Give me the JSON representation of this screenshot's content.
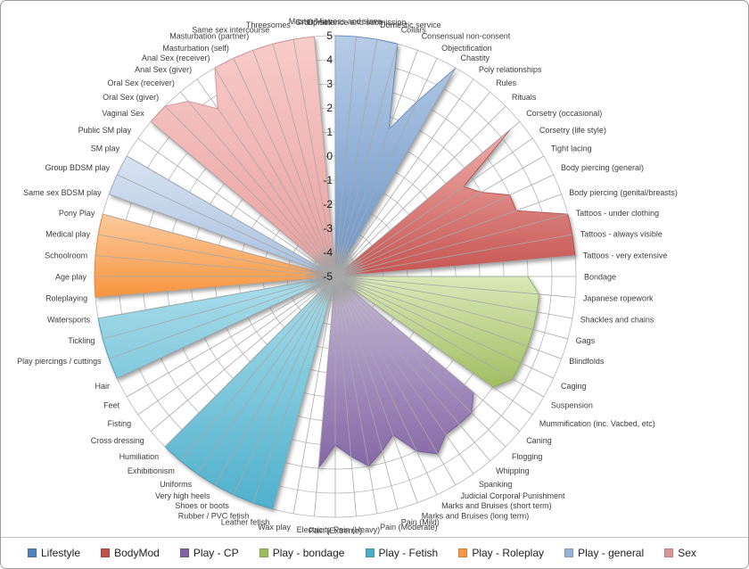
{
  "window": {
    "background": "#ffffff",
    "border_color": "#9c9c9c",
    "grid_color": "#b5b5b5",
    "spoke_color": "#a8a8a8"
  },
  "chart_data": {
    "type": "radar",
    "title": "",
    "axis": {
      "min": -5,
      "max": 5,
      "step": 1,
      "tick_labels": [
        "5",
        "4",
        "3",
        "2",
        "1",
        "0",
        "-1",
        "-2",
        "-3",
        "-4",
        "-5"
      ]
    },
    "grid": "on",
    "legend_position": "bottom",
    "default_value": -5,
    "categories": [
      "Master/Mistress and slave",
      "Dominance and submission",
      "Domestic service",
      "Collars",
      "Consensual non-consent",
      "Objectification",
      "Chastity",
      "Poly relationships",
      "Rules",
      "Rituals",
      "Corsetry (occasional)",
      "Corsetry (life style)",
      "Tight lacing",
      "Body piercing (general)",
      "Body piercing (genital/breasts)",
      "Tattoos - under clothing",
      "Tattoos - always visible",
      "Tattoos - very extensive",
      "Bondage",
      "Japanese ropework",
      "Shackles and chains",
      "Gags",
      "Blindfolds",
      "Caging",
      "Suspension",
      "Mummification (inc. Vacbed, etc)",
      "Caning",
      "Flogging",
      "Whipping",
      "Spanking",
      "Judicial Corporal Punishment",
      "Marks and Bruises (short term)",
      "Marks and Bruises (long term)",
      "Pain (Mild)",
      "Pain (Moderate)",
      "Pain (Heavy)",
      "Pain (Extreme)",
      "Electricity",
      "Wax play",
      "Leather fetish",
      "Rubber / PVC fetish",
      "Shoes or boots",
      "Very high heels",
      "Uniforms",
      "Exhibitionism",
      "Humiliation",
      "Cross dressing",
      "Fisting",
      "Feet",
      "Hair",
      "Play piercings / cuttings",
      "Tickling",
      "Watersports",
      "Roleplaying",
      "Age play",
      "Schoolroom",
      "Medical play",
      "Pony Play",
      "Same sex BDSM play",
      "Group BDSM play",
      "SM play",
      "Public SM play",
      "Vaginal Sex",
      "Oral Sex (giver)",
      "Oral Sex (receiver)",
      "Anal Sex (giver)",
      "Anal Sex (receiver)",
      "Masturbation (self)",
      "Masturbation (partner)",
      "Same sex intercourse",
      "Threesomes",
      "Group sex"
    ],
    "series": [
      {
        "name": "Lifestyle",
        "start": 0,
        "values": [
          5,
          5,
          5,
          5,
          1.5,
          3,
          5,
          -5,
          -5,
          -5
        ],
        "fill_light": "#B7CCE7",
        "fill_dark": "#6A94C6",
        "stroke": "#5B86BC",
        "color": "#4F81BD"
      },
      {
        "name": "BodyMod",
        "start": 10,
        "values": [
          4.5,
          1.5,
          2,
          3,
          3,
          5,
          5,
          5
        ],
        "fill_light": "#EFADAB",
        "fill_dark": "#C65551",
        "stroke": "#AF4A47",
        "color": "#C0504D"
      },
      {
        "name": "Play - CP",
        "start": 26,
        "values": [
          2.5,
          3,
          3,
          3,
          3.5,
          3,
          2,
          2.5,
          3,
          2.5,
          2,
          3,
          -5
        ],
        "fill_light": "#C6B8D7",
        "fill_dark": "#8467A5",
        "stroke": "#74599A",
        "color": "#8064A2"
      },
      {
        "name": "Play - bondage",
        "start": 18,
        "values": [
          3,
          3.5,
          3.5,
          3.5,
          3.5,
          3.5,
          3.5,
          3
        ],
        "fill_light": "#D9E8B8",
        "fill_dark": "#A0BE61",
        "stroke": "#8CAC50",
        "color": "#9BBB59"
      },
      {
        "name": "Play - Fetish",
        "start": 39,
        "values": [
          5,
          5,
          5,
          5,
          5,
          5,
          5,
          -5,
          -5,
          -5,
          5,
          5,
          5,
          5
        ],
        "fill_light": "#A9DDEA",
        "fill_dark": "#4FB0CC",
        "stroke": "#3F9DBB",
        "color": "#4BACC6"
      },
      {
        "name": "Play - Roleplay",
        "start": 53,
        "values": [
          5,
          5,
          5,
          5,
          5
        ],
        "fill_light": "#FBCA9B",
        "fill_dark": "#F7953F",
        "stroke": "#E2822E",
        "color": "#F79646"
      },
      {
        "name": "Play - general",
        "start": 58,
        "values": [
          5,
          5,
          5,
          -5
        ],
        "fill_light": "#D9E3F1",
        "fill_dark": "#A7C0E0",
        "stroke": "#93AFD3",
        "color": "#95B3D7"
      },
      {
        "name": "Sex",
        "start": 62,
        "values": [
          5,
          5,
          4.5,
          3.5,
          5,
          5,
          5,
          5,
          5,
          5
        ],
        "fill_light": "#F7CCCB",
        "fill_dark": "#E9A09E",
        "stroke": "#D08E8C",
        "color": "#D99694"
      }
    ]
  },
  "legend": {
    "items": [
      {
        "label": "Lifestyle",
        "color": "#4F81BD"
      },
      {
        "label": "BodyMod",
        "color": "#C0504D"
      },
      {
        "label": "Play - CP",
        "color": "#8064A2"
      },
      {
        "label": "Play - bondage",
        "color": "#9BBB59"
      },
      {
        "label": "Play - Fetish",
        "color": "#4BACC6"
      },
      {
        "label": "Play - Roleplay",
        "color": "#F79646"
      },
      {
        "label": "Play - general",
        "color": "#95B3D7"
      },
      {
        "label": "Sex",
        "color": "#D99694"
      }
    ]
  }
}
